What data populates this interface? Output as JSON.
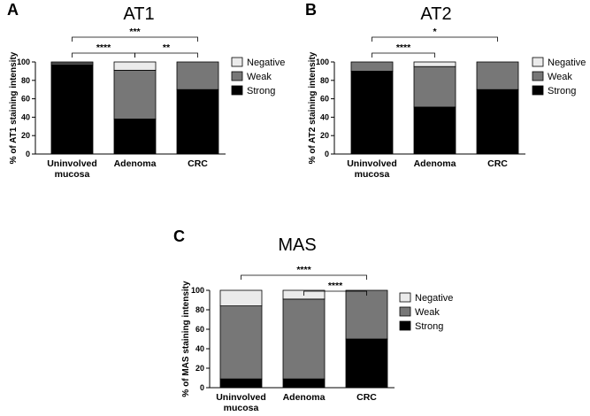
{
  "colors": {
    "Negative": "#ebebeb",
    "Weak": "#777777",
    "Strong": "#000000",
    "axis": "#000000"
  },
  "chart_data": [
    {
      "panel": "A",
      "type": "bar",
      "stacked": true,
      "title": "AT1",
      "ylabel": "% of AT1 staining intensity",
      "ylim": [
        0,
        100
      ],
      "yticks": [
        "0",
        "20",
        "40",
        "60",
        "80",
        "100"
      ],
      "categories": [
        [
          "Uninvolved",
          "mucosa"
        ],
        [
          "Adenoma"
        ],
        [
          "CRC"
        ]
      ],
      "series": [
        {
          "name": "Strong",
          "values": [
            97,
            38,
            70
          ]
        },
        {
          "name": "Weak",
          "values": [
            2,
            53,
            30
          ]
        },
        {
          "name": "Negative",
          "values": [
            1,
            9,
            0
          ]
        }
      ],
      "legend": [
        "Negative",
        "Weak",
        "Strong"
      ],
      "legend_position": "right",
      "significance": [
        {
          "from": 0,
          "to": 2,
          "label": "***"
        },
        {
          "from": 0,
          "to": 1,
          "label": "****"
        },
        {
          "from": 1,
          "to": 2,
          "label": "**"
        }
      ]
    },
    {
      "panel": "B",
      "type": "bar",
      "stacked": true,
      "title": "AT2",
      "ylabel": "% of AT2 staining intensity",
      "ylim": [
        0,
        100
      ],
      "yticks": [
        "0",
        "20",
        "40",
        "60",
        "80",
        "100"
      ],
      "categories": [
        [
          "Uninvolved",
          "mucosa"
        ],
        [
          "Adenoma"
        ],
        [
          "CRC"
        ]
      ],
      "series": [
        {
          "name": "Strong",
          "values": [
            90,
            51,
            70
          ]
        },
        {
          "name": "Weak",
          "values": [
            10,
            44,
            30
          ]
        },
        {
          "name": "Negative",
          "values": [
            0,
            5,
            0
          ]
        }
      ],
      "legend": [
        "Negative",
        "Weak",
        "Strong"
      ],
      "legend_position": "right",
      "significance": [
        {
          "from": 0,
          "to": 2,
          "label": "*"
        },
        {
          "from": 0,
          "to": 1,
          "label": "****"
        }
      ]
    },
    {
      "panel": "C",
      "type": "bar",
      "stacked": true,
      "title": "MAS",
      "ylabel": "% of MAS staining intensity",
      "ylim": [
        0,
        100
      ],
      "yticks": [
        "0",
        "20",
        "40",
        "60",
        "80",
        "100"
      ],
      "categories": [
        [
          "Uninvolved",
          "mucosa"
        ],
        [
          "Adenoma"
        ],
        [
          "CRC"
        ]
      ],
      "series": [
        {
          "name": "Strong",
          "values": [
            9,
            9,
            50
          ]
        },
        {
          "name": "Weak",
          "values": [
            75,
            82,
            50
          ]
        },
        {
          "name": "Negative",
          "values": [
            16,
            9,
            0
          ]
        }
      ],
      "legend": [
        "Negative",
        "Weak",
        "Strong"
      ],
      "legend_position": "right",
      "significance": [
        {
          "from": 0,
          "to": 2,
          "label": "****"
        },
        {
          "from": 1,
          "to": 2,
          "label": "****"
        }
      ]
    }
  ]
}
